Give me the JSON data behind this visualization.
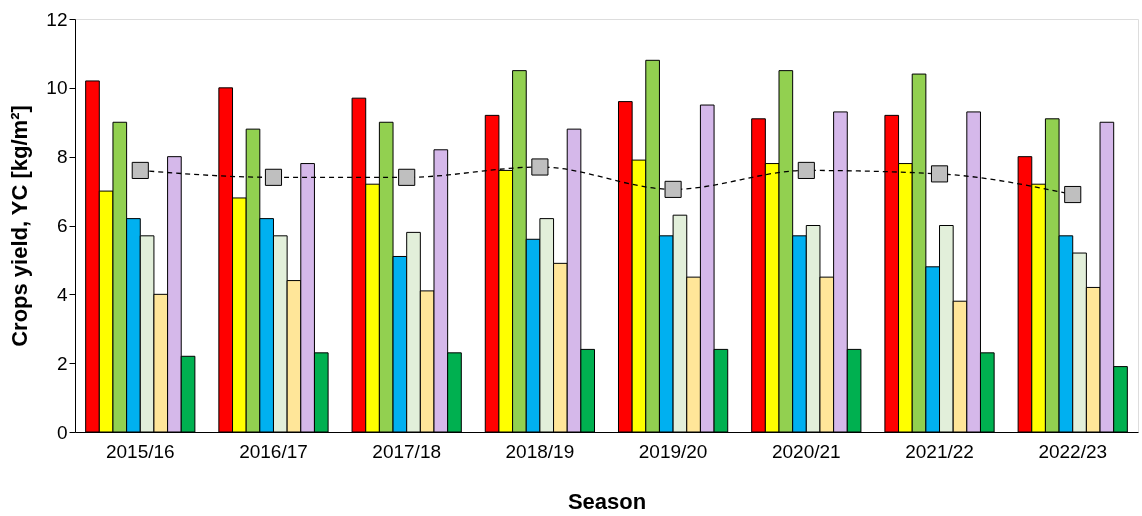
{
  "chart_data": {
    "type": "bar",
    "xlabel": "Season",
    "ylabel": "Crops yield, YC [kg/m²]",
    "categories": [
      "2015/16",
      "2016/17",
      "2017/18",
      "2018/19",
      "2019/20",
      "2020/21",
      "2021/22",
      "2022/23"
    ],
    "ylim": [
      0,
      12
    ],
    "yticks": [
      0,
      2,
      4,
      6,
      8,
      10,
      12
    ],
    "series": [
      {
        "color": "#ff0000",
        "values": [
          10.2,
          10.0,
          9.7,
          9.2,
          9.6,
          9.1,
          9.2,
          8.0
        ]
      },
      {
        "color": "#ffff00",
        "values": [
          7.0,
          6.8,
          7.2,
          7.6,
          7.9,
          7.8,
          7.8,
          7.2
        ]
      },
      {
        "color": "#92d050",
        "values": [
          9.0,
          8.8,
          9.0,
          10.5,
          10.8,
          10.5,
          10.4,
          9.1
        ]
      },
      {
        "color": "#00b0f0",
        "values": [
          6.2,
          6.2,
          5.1,
          5.6,
          5.7,
          5.7,
          4.8,
          5.7
        ]
      },
      {
        "color": "#e2efda",
        "values": [
          5.7,
          5.7,
          5.8,
          6.2,
          6.3,
          6.0,
          6.0,
          5.2
        ]
      },
      {
        "color": "#ffe699",
        "values": [
          4.0,
          4.4,
          4.1,
          4.9,
          4.5,
          4.5,
          3.8,
          4.2
        ]
      },
      {
        "color": "#d5b8ea",
        "values": [
          8.0,
          7.8,
          8.2,
          8.8,
          9.5,
          9.3,
          9.3,
          9.0
        ]
      },
      {
        "color": "#00b050",
        "values": [
          2.2,
          2.3,
          2.3,
          2.4,
          2.4,
          2.4,
          2.3,
          1.9
        ]
      },
      {
        "type": "line",
        "color": "#bfbfbf",
        "marker": "square",
        "line_style": "dashed",
        "values": [
          7.6,
          7.4,
          7.4,
          7.7,
          7.05,
          7.6,
          7.5,
          6.9
        ]
      }
    ]
  }
}
